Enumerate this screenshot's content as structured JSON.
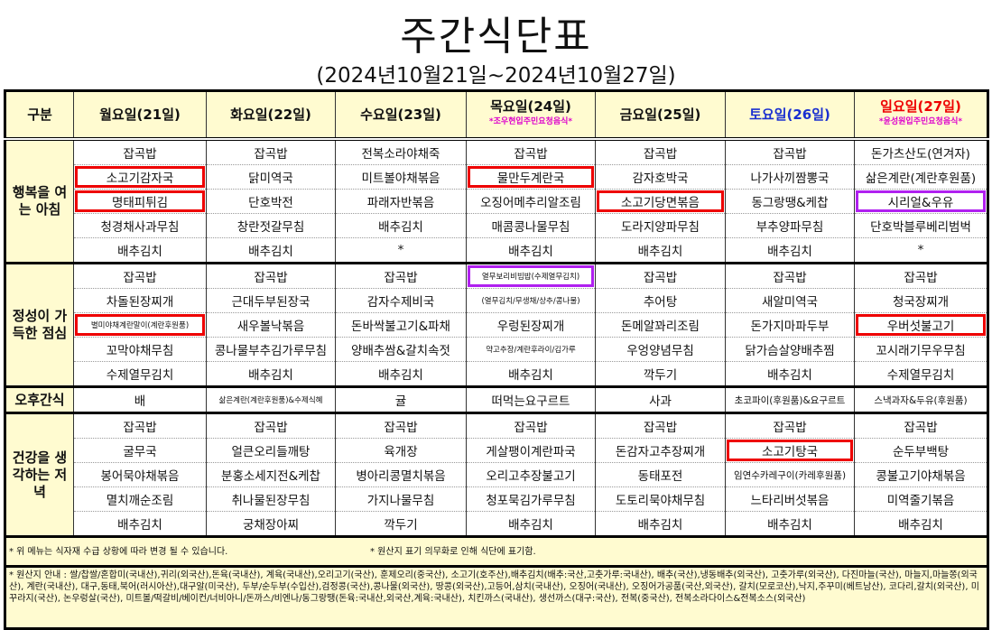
{
  "title": "주간식단표",
  "subtitle": "(2024년10월21일~2024년10월27일)",
  "header": {
    "category": "구분",
    "days": [
      {
        "label": "월요일(21일)",
        "sub": "",
        "color": "normal"
      },
      {
        "label": "화요일(22일)",
        "sub": "",
        "color": "normal"
      },
      {
        "label": "수요일(23일)",
        "sub": "",
        "color": "normal"
      },
      {
        "label": "목요일(24일)",
        "sub": "*조우현입주민요청음식*",
        "color": "normal"
      },
      {
        "label": "금요일(25일)",
        "sub": "",
        "color": "normal"
      },
      {
        "label": "토요일(26일)",
        "sub": "",
        "color": "#1a2fd0"
      },
      {
        "label": "일요일(27일)",
        "sub": "*윤성원입주민요청음식*",
        "color": "#e00000"
      }
    ]
  },
  "highlight_colors": {
    "red": "#e00000",
    "purple": "#b020f0"
  },
  "meals": [
    {
      "label": "행복을 여는 아침",
      "rows": [
        [
          "잡곡밥",
          "잡곡밥",
          "전복소라야채죽",
          "잡곡밥",
          "잡곡밥",
          "잡곡밥",
          "돈가츠산도(연겨자)"
        ],
        [
          "소고기감자국",
          "닭미역국",
          "미트볼야채볶음",
          "물만두계란국",
          "감자호박국",
          "나가사끼짬뽕국",
          "삶은계란(계란후원품)"
        ],
        [
          "명태피튀김",
          "단호박전",
          "파래자반볶음",
          "오징어메추리알조림",
          "소고기당면볶음",
          "동그랑땡&케찹",
          "시리얼&우유"
        ],
        [
          "청경채사과무침",
          "창란젓갈무침",
          "배추김치",
          "매콤콩나물무침",
          "도라지양파무침",
          "부추양파무침",
          "단호박블루베리범벅"
        ],
        [
          "배추김치",
          "배추김치",
          "*",
          "배추김치",
          "배추김치",
          "배추김치",
          "*"
        ]
      ],
      "highlights": [
        {
          "row": 1,
          "col": 0,
          "color": "red"
        },
        {
          "row": 2,
          "col": 0,
          "color": "red"
        },
        {
          "row": 1,
          "col": 3,
          "color": "red"
        },
        {
          "row": 2,
          "col": 4,
          "color": "red"
        },
        {
          "row": 2,
          "col": 6,
          "color": "purple"
        }
      ]
    },
    {
      "label": "정성이 가득한 점심",
      "rows": [
        [
          "잡곡밥",
          "잡곡밥",
          "잡곡밥",
          "열무보리비빔밥(수제열무김치)",
          "잡곡밥",
          "잡곡밥",
          "잡곡밥"
        ],
        [
          "차돌된장찌개",
          "근대두부된장국",
          "감자수제비국",
          "(열무김치/무생채/상추/콩나물)",
          "추어탕",
          "새알미역국",
          "청국장찌개"
        ],
        [
          "별미야채계란말이(계란후원품)",
          "새우볼낙볶음",
          "돈바싹불고기&파채",
          "우렁된장찌개",
          "돈메알꽈리조림",
          "돈가지마파두부",
          "우버섯불고기"
        ],
        [
          "꼬막야채무침",
          "콩나물부추김가루무침",
          "양배추쌈&갈치속젓",
          "약고추장/계란후라이/김가루",
          "우엉양념무침",
          "닭가슴살양배추찜",
          "꼬시래기무우무침"
        ],
        [
          "수제열무김치",
          "배추김치",
          "배추김치",
          "배추김치",
          "깍두기",
          "배추김치",
          "수제열무김치"
        ]
      ],
      "small": [
        [
          2,
          0
        ],
        [
          0,
          3
        ],
        [
          1,
          3
        ],
        [
          3,
          3
        ]
      ],
      "highlights": [
        {
          "row": 2,
          "col": 0,
          "color": "red"
        },
        {
          "row": 0,
          "col": 3,
          "color": "purple"
        },
        {
          "row": 2,
          "col": 6,
          "color": "red"
        }
      ]
    },
    {
      "label": "오후간식",
      "rows": [
        [
          "배",
          "삶은계란(계란후원품)&수제식혜",
          "귤",
          "떠먹는요구르트",
          "사과",
          "초코파이(후원품)&요구르트",
          "스낵과자&두유(후원품)"
        ]
      ],
      "small": [
        [
          0,
          1
        ]
      ],
      "medium": [
        [
          0,
          5
        ],
        [
          0,
          6
        ]
      ],
      "highlights": []
    },
    {
      "label": "건강을 생각하는 저녁",
      "rows": [
        [
          "잡곡밥",
          "잡곡밥",
          "잡곡밥",
          "잡곡밥",
          "잡곡밥",
          "잡곡밥",
          "잡곡밥"
        ],
        [
          "굴무국",
          "얼큰오리들깨탕",
          "육개장",
          "게살팽이계란파국",
          "돈감자고추장찌개",
          "소고기탕국",
          "순두부백탕"
        ],
        [
          "봉어묵야채볶음",
          "분홍소세지전&케찹",
          "병아리콩멸치볶음",
          "오리고추장불고기",
          "동태포전",
          "임연수카레구이(카레후원품)",
          "콩불고기야채볶음"
        ],
        [
          "멸치깨순조림",
          "취나물된장무침",
          "가지나물무침",
          "청포묵김가루무침",
          "도토리묵야채무침",
          "느타리버섯볶음",
          "미역줄기볶음"
        ],
        [
          "배추김치",
          "궁채장아찌",
          "깍두기",
          "배추김치",
          "배추김치",
          "배추김치",
          "배추김치"
        ]
      ],
      "medium": [
        [
          2,
          5
        ]
      ],
      "highlights": [
        {
          "row": 1,
          "col": 5,
          "color": "red"
        }
      ]
    }
  ],
  "notes": {
    "change_notice": "* 위 메뉴는 식자재 수급 상황에 따라 변경 될 수 있습니다.",
    "origin_notice": "* 원산지 표기 의무화로 인해 식단에 표기함.",
    "origin_info": "* 원산지 안내 : 쌀/찹쌀/혼합미(국내산),귀리(외국산),돈육(국내산), 계육(국내산),오리고기(국산), 훈제오리(중국산), 소고기(호주산),배추김치(배추:국산,고춧가루:국내산), 배추(국산),냉동배추(외국산), 고춧가루(외국산), 다진마늘(국산), 마늘지,마늘쫑(외국산), 계란(국내산), 대구,동태,북어(러시아산),대구알(미국산), 두부/순두부(수입산),검정콩(국산),콩나물(외국산), 땅콩(외국산),고등어,삼치(국내산), 오징어(국내산), 오징어가공품(국산,외국산), 갈치(모로코산),낙지,주꾸미(베트남산), 코다리,갈치(외국산), 미꾸라지(국산), 논우렁살(국산), 미트볼/떡갈비/베이컨/너비아니/돈까스/비엔나/동그랑땡(돈육:국내산,외국산,계육:국내산), 치킨까스(국내산), 생선까스(대구:국산), 전복(중국산), 전복소라다이스&전복소스(외국산)"
  }
}
